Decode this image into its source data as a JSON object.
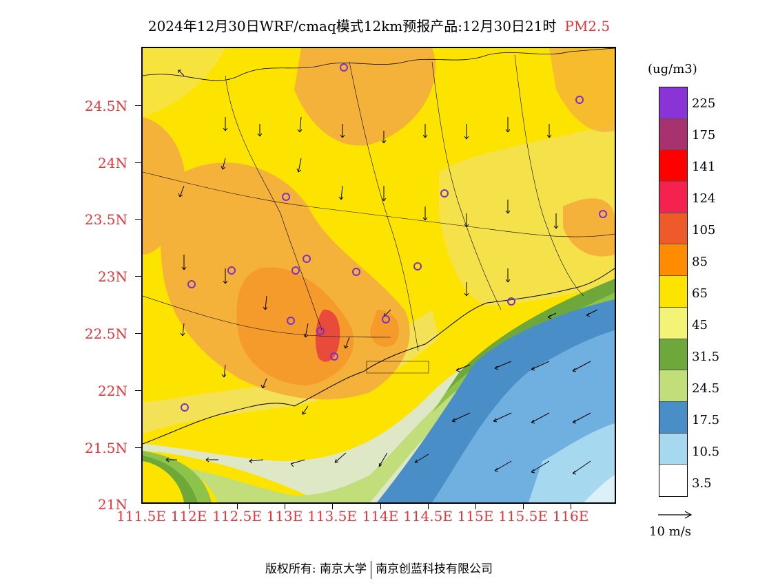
{
  "title": {
    "main": "2024年12月30日WRF/cmaq模式12km预报产品:12月30日21时",
    "variable": "PM2.5"
  },
  "axes": {
    "lat_labels": [
      "24.5N",
      "24N",
      "23.5N",
      "23N",
      "22.5N",
      "22N",
      "21.5N",
      "21N"
    ],
    "lon_labels": [
      "111.5E",
      "112E",
      "112.5E",
      "113E",
      "113.5E",
      "114E",
      "114.5E",
      "115E",
      "115.5E",
      "116E"
    ]
  },
  "colorbar": {
    "unit": "(ug/m3)",
    "labels": [
      "225",
      "175",
      "141",
      "124",
      "105",
      "85",
      "65",
      "45",
      "31.5",
      "24.5",
      "17.5",
      "10.5",
      "3.5"
    ],
    "colors": [
      "#8a33d6",
      "#a83270",
      "#cc1a6b",
      "#ff0000",
      "#f5224f",
      "#fa6363",
      "#ee5a2a",
      "#ff8c00",
      "#f9a834",
      "#fde400",
      "#ede355",
      "#f3f376",
      "#6fa83a",
      "#8dc34a",
      "#c1de7b",
      "#dfe8c6",
      "#4a8ec8",
      "#70b0e0",
      "#a6d8f0",
      "#dcf0fa",
      "#ffffff"
    ]
  },
  "reference_vector": {
    "label": "10 m/s"
  },
  "map_colors": {
    "yellow": "#fde400",
    "light_yellow": "#f3e258",
    "orange_light": "#f5b23a",
    "orange": "#f59b2c",
    "red": "#e84b3a",
    "pale_green": "#dfe8c6",
    "green_light": "#c1de7b",
    "green": "#8dc34a",
    "green_dark": "#6fa83a",
    "blue_dark": "#4a8ec8",
    "blue": "#70b0e0",
    "blue_light": "#a6d8f0",
    "blue_pale": "#dcf0fa",
    "station": "#7d2fc9"
  },
  "footer": {
    "copyright": "版权所有: 南京大学",
    "company": "南京创蓝科技有限公司"
  }
}
